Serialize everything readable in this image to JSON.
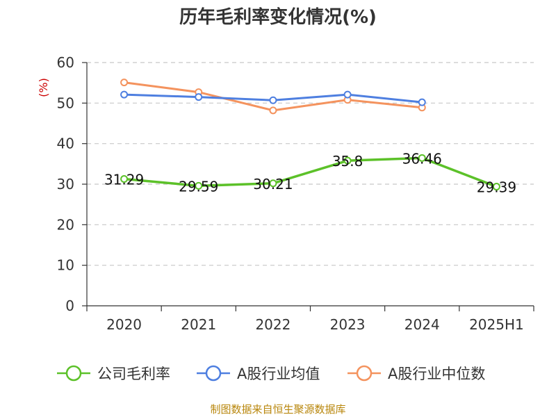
{
  "chart_data": {
    "type": "line",
    "title": "历年毛利率变化情况(%)",
    "ylabel": "(%)",
    "categories": [
      "2020",
      "2021",
      "2022",
      "2023",
      "2024",
      "2025H1"
    ],
    "ylim": [
      0,
      60
    ],
    "yticks": [
      0,
      10,
      20,
      30,
      40,
      50,
      60
    ],
    "grid": true,
    "legend_position": "bottom",
    "series": [
      {
        "name": "公司毛利率",
        "color": "#5cc129",
        "values": [
          31.29,
          29.59,
          30.21,
          35.8,
          36.46,
          29.39
        ],
        "labels": [
          "31.29",
          "29.59",
          "30.21",
          "35.8",
          "36.46",
          "29.39"
        ]
      },
      {
        "name": "A股行业均值",
        "color": "#4e7fe0",
        "values": [
          52.1,
          51.5,
          50.7,
          52.1,
          50.2,
          null
        ]
      },
      {
        "name": "A股行业中位数",
        "color": "#f4935e",
        "values": [
          55.1,
          52.7,
          48.2,
          50.8,
          48.9,
          null
        ]
      }
    ]
  },
  "source": "制图数据来自恒生聚源数据库"
}
